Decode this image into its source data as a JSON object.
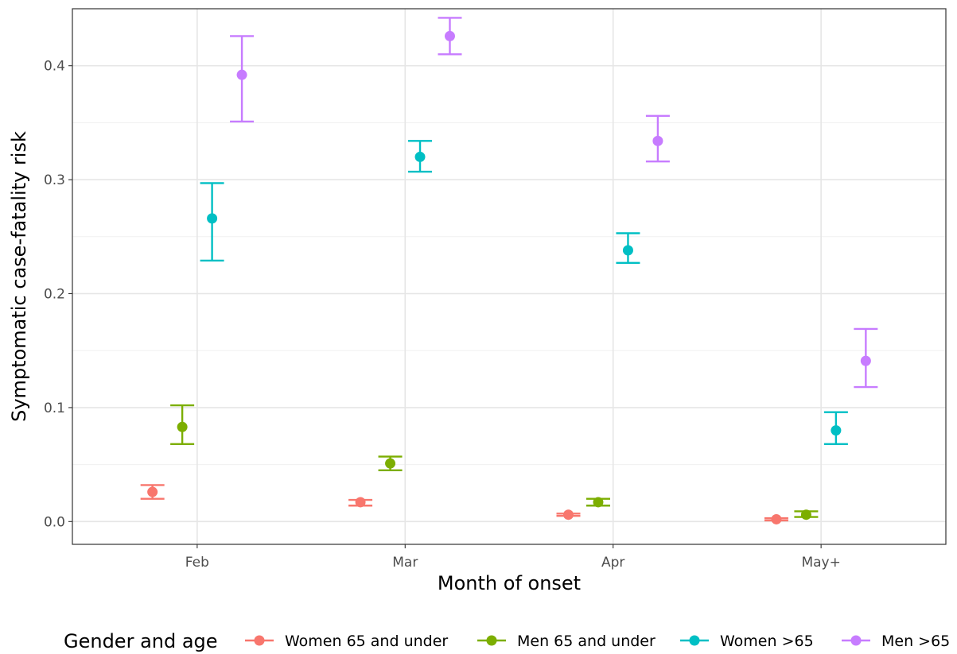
{
  "chart_data": {
    "type": "scatter",
    "title": "",
    "xlabel": "Month of onset",
    "ylabel": "Symptomatic case-fatality risk",
    "categories": [
      "Feb",
      "Mar",
      "Apr",
      "May+"
    ],
    "ylim": [
      -0.02,
      0.45
    ],
    "yticks": [
      0.0,
      0.1,
      0.2,
      0.3,
      0.4
    ],
    "ytick_labels": [
      "0.0",
      "0.1",
      "0.2",
      "0.3",
      "0.4"
    ],
    "grid": true,
    "legend": {
      "title": "Gender and age",
      "position": "bottom"
    },
    "series": [
      {
        "name": "Women 65 and under",
        "color": "#F8766D",
        "values": [
          0.026,
          0.017,
          0.006,
          0.002
        ],
        "lower": [
          0.02,
          0.014,
          0.005,
          0.001
        ],
        "upper": [
          0.032,
          0.019,
          0.007,
          0.003
        ]
      },
      {
        "name": "Men 65 and under",
        "color": "#7CAE00",
        "values": [
          0.083,
          0.051,
          0.017,
          0.006
        ],
        "lower": [
          0.068,
          0.045,
          0.014,
          0.004
        ],
        "upper": [
          0.102,
          0.057,
          0.02,
          0.009
        ]
      },
      {
        "name": "Women >65",
        "color": "#00BFC4",
        "values": [
          0.266,
          0.32,
          0.238,
          0.08
        ],
        "lower": [
          0.229,
          0.307,
          0.227,
          0.068
        ],
        "upper": [
          0.297,
          0.334,
          0.253,
          0.096
        ]
      },
      {
        "name": "Men >65",
        "color": "#C77CFF",
        "values": [
          0.392,
          0.426,
          0.334,
          0.141
        ],
        "lower": [
          0.351,
          0.41,
          0.316,
          0.118
        ],
        "upper": [
          0.426,
          0.442,
          0.356,
          0.169
        ]
      }
    ]
  }
}
